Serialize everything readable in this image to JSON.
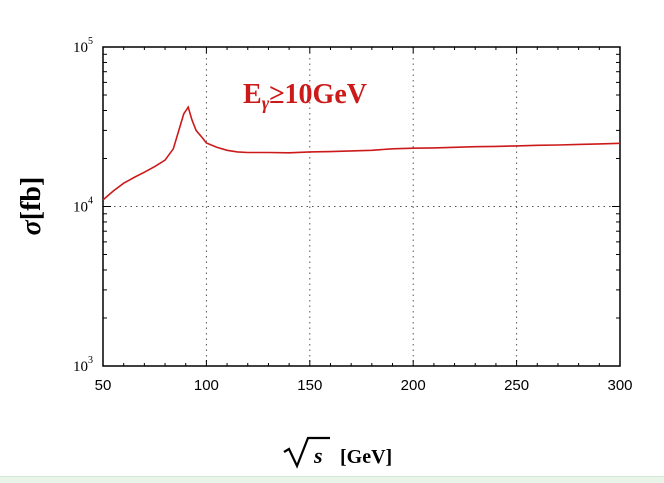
{
  "chart_data": {
    "type": "line",
    "title": "",
    "annotation": {
      "main": "E",
      "sub": "γ",
      "rest": "≥10GeV"
    },
    "xlabel": {
      "symbol": "s",
      "unit": "[GeV]"
    },
    "ylabel": {
      "sigma": "σ",
      "unit": "[fb]"
    },
    "xlim": [
      50,
      300
    ],
    "ylim": [
      1000,
      100000
    ],
    "yscale": "log",
    "grid": "dotted",
    "xticks": [
      50,
      100,
      150,
      200,
      250,
      300
    ],
    "xtick_labels": [
      "50",
      "100",
      "150",
      "200",
      "250",
      "300"
    ],
    "yticks": [
      {
        "value": 1000,
        "base": "10",
        "exp": "3"
      },
      {
        "value": 10000,
        "base": "10",
        "exp": "4"
      },
      {
        "value": 100000,
        "base": "10",
        "exp": "5"
      }
    ],
    "line_color": "#cc1a1a",
    "series": [
      {
        "x": [
          50,
          55,
          60,
          65,
          70,
          75,
          80,
          84,
          87,
          89,
          91.2,
          93,
          95,
          98,
          100,
          105,
          110,
          115,
          120,
          130,
          140,
          150,
          160,
          170,
          180,
          190,
          200,
          210,
          220,
          230,
          240,
          250,
          260,
          270,
          280,
          290,
          300
        ],
        "y": [
          11000,
          12500,
          14000,
          15200,
          16400,
          17800,
          19500,
          23000,
          31000,
          38000,
          42000,
          35000,
          30000,
          27000,
          25000,
          23500,
          22500,
          22000,
          21800,
          21800,
          21700,
          22000,
          22100,
          22300,
          22500,
          23000,
          23200,
          23300,
          23500,
          23700,
          23800,
          24000,
          24200,
          24300,
          24500,
          24700,
          24900
        ]
      }
    ]
  }
}
